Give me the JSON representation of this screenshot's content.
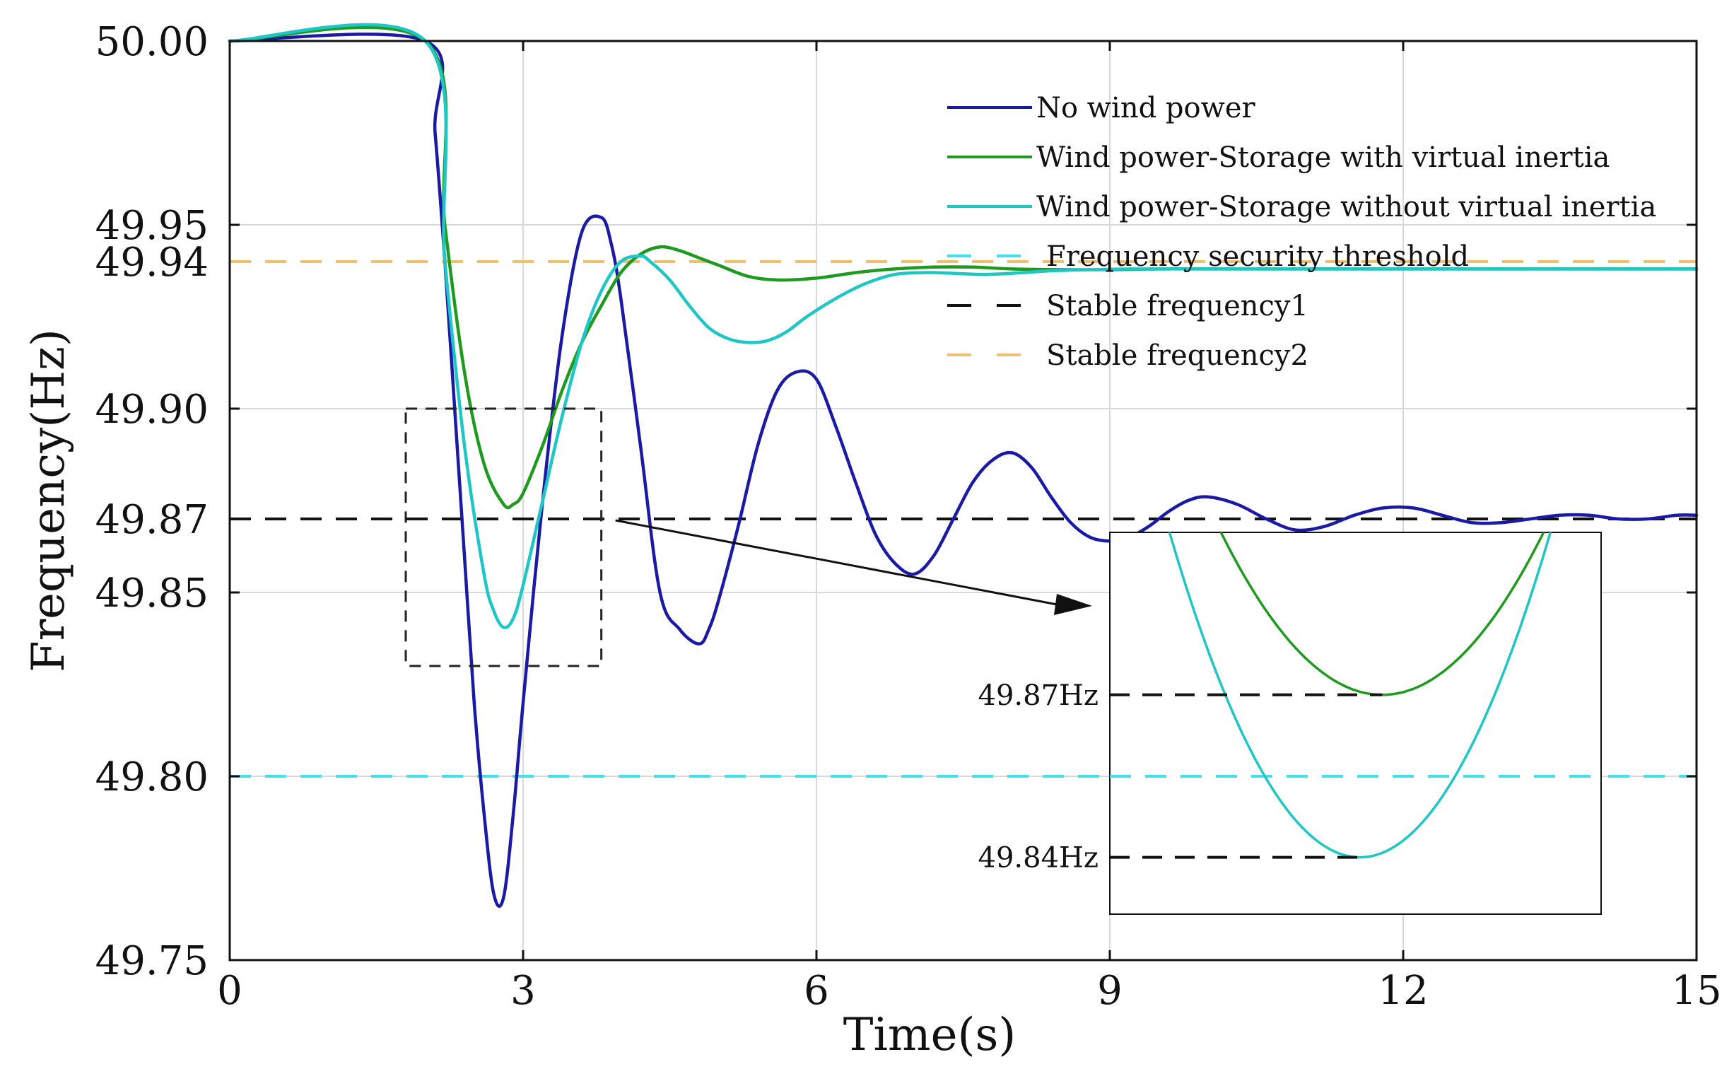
{
  "chart_data": {
    "type": "line",
    "title": "",
    "xlabel": "Time(s)",
    "ylabel": "Frequency(Hz)",
    "xlim": [
      0,
      15
    ],
    "ylim": [
      49.75,
      50.0
    ],
    "x_ticks": [
      0,
      3,
      6,
      9,
      12,
      15
    ],
    "x_tick_labels": [
      "0",
      "3",
      "6",
      "9",
      "12",
      "15"
    ],
    "y_ticks": [
      49.75,
      49.8,
      49.85,
      49.87,
      49.9,
      49.94,
      49.95,
      50.0
    ],
    "y_tick_labels": [
      "49.75",
      "49.80",
      "49.85",
      "49.87",
      "49.90",
      "49.94",
      "49.95",
      "50.00"
    ],
    "grid": true,
    "legend_position": "top-right",
    "series": [
      {
        "name": "No wind power",
        "color": "#1a1aa6",
        "style": "solid",
        "x": [
          0,
          2.0,
          2.1,
          2.2,
          2.3,
          2.4,
          2.5,
          2.6,
          2.7,
          2.8,
          2.9,
          3.0,
          3.2,
          3.4,
          3.6,
          3.8,
          3.9,
          4.0,
          4.2,
          4.4,
          4.6,
          4.8,
          4.9,
          5.0,
          5.2,
          5.4,
          5.6,
          5.8,
          6.0,
          6.2,
          6.4,
          6.6,
          6.8,
          7.0,
          7.2,
          7.4,
          7.6,
          7.8,
          8.0,
          8.2,
          8.4,
          8.6,
          8.8,
          9.0,
          9.2,
          9.4,
          9.6,
          9.8,
          10.0,
          10.3,
          10.6,
          10.9,
          11.2,
          11.5,
          11.8,
          12.1,
          12.4,
          12.7,
          13.0,
          13.3,
          13.6,
          13.9,
          14.2,
          14.5,
          14.8,
          15.0
        ],
        "values": [
          50.0,
          50.0,
          49.975,
          49.94,
          49.9,
          49.86,
          49.82,
          49.79,
          49.768,
          49.767,
          49.79,
          49.82,
          49.875,
          49.92,
          49.948,
          49.952,
          49.945,
          49.93,
          49.89,
          49.85,
          49.84,
          49.836,
          49.84,
          49.848,
          49.868,
          49.89,
          49.905,
          49.91,
          49.908,
          49.895,
          49.88,
          49.866,
          49.858,
          49.855,
          49.86,
          49.87,
          49.88,
          49.886,
          49.888,
          49.884,
          49.876,
          49.869,
          49.865,
          49.864,
          49.865,
          49.868,
          49.872,
          49.875,
          49.876,
          49.874,
          49.87,
          49.867,
          49.868,
          49.871,
          49.873,
          49.873,
          49.871,
          49.869,
          49.869,
          49.87,
          49.871,
          49.871,
          49.87,
          49.87,
          49.871,
          49.871
        ]
      },
      {
        "name": "Wind power-Storage with virtual inertia",
        "color": "#1e9a1e",
        "style": "solid",
        "x": [
          0,
          2.0,
          2.2,
          2.4,
          2.6,
          2.8,
          2.9,
          3.0,
          3.2,
          3.4,
          3.6,
          3.8,
          4.0,
          4.2,
          4.4,
          4.6,
          4.8,
          5.0,
          5.3,
          5.6,
          6.0,
          6.4,
          6.8,
          7.2,
          7.6,
          8.0,
          8.5,
          9.0,
          9.5,
          10.0,
          11.0,
          12.0,
          13.0,
          14.0,
          15.0
        ],
        "values": [
          50.0,
          50.0,
          49.95,
          49.91,
          49.885,
          49.874,
          49.874,
          49.877,
          49.89,
          49.905,
          49.918,
          49.928,
          49.937,
          49.942,
          49.944,
          49.943,
          49.941,
          49.939,
          49.936,
          49.935,
          49.9355,
          49.937,
          49.938,
          49.9385,
          49.9385,
          49.938,
          49.9378,
          49.9378,
          49.938,
          49.938,
          49.938,
          49.938,
          49.938,
          49.938,
          49.938
        ]
      },
      {
        "name": "Wind power-Storage without virtual inertia",
        "color": "#1fc6c6",
        "style": "solid",
        "x": [
          0,
          2.0,
          2.2,
          2.4,
          2.6,
          2.7,
          2.8,
          2.9,
          3.0,
          3.2,
          3.4,
          3.6,
          3.8,
          4.0,
          4.2,
          4.3,
          4.5,
          4.7,
          4.9,
          5.1,
          5.3,
          5.5,
          5.7,
          5.9,
          6.2,
          6.5,
          6.8,
          7.1,
          7.4,
          7.7,
          8.0,
          8.4,
          8.8,
          9.2,
          9.6,
          10.0,
          11.0,
          12.0,
          13.0,
          14.0,
          15.0
        ],
        "values": [
          50.0,
          50.0,
          49.94,
          49.89,
          49.855,
          49.845,
          49.8405,
          49.843,
          49.852,
          49.875,
          49.898,
          49.918,
          49.932,
          49.94,
          49.9415,
          49.94,
          49.935,
          49.928,
          49.922,
          49.919,
          49.918,
          49.9185,
          49.921,
          49.925,
          49.93,
          49.934,
          49.9365,
          49.937,
          49.9368,
          49.9365,
          49.9368,
          49.9375,
          49.9378,
          49.938,
          49.938,
          49.938,
          49.938,
          49.938,
          49.938,
          49.938,
          49.938
        ]
      },
      {
        "name": "Frequency security threshold",
        "color": "#40e0f0",
        "style": "dashed",
        "x": [
          0,
          15
        ],
        "values": [
          49.8,
          49.8
        ]
      },
      {
        "name": "Stable frequency1",
        "color": "#111111",
        "style": "dashed",
        "x": [
          0,
          15
        ],
        "values": [
          49.87,
          49.87
        ]
      },
      {
        "name": "Stable frequency2",
        "color": "#f0c070",
        "style": "dashed",
        "x": [
          0,
          15
        ],
        "values": [
          49.94,
          49.94
        ]
      }
    ],
    "zoom_region": {
      "x_range": [
        1.8,
        3.8
      ],
      "y_range": [
        49.83,
        49.9
      ]
    },
    "inset": {
      "annotations": [
        "49.87Hz",
        "49.84Hz"
      ],
      "annotation_values": [
        49.87,
        49.84
      ]
    }
  }
}
